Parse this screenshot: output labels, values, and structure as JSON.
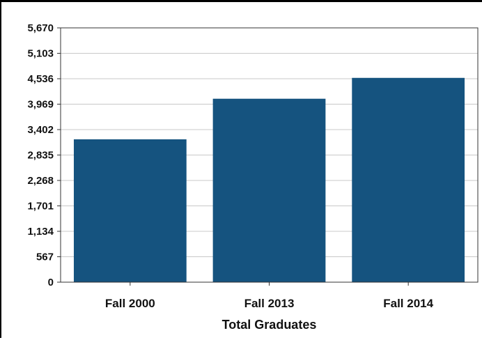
{
  "chart_data": {
    "type": "bar",
    "title": "",
    "xlabel": "Total Graduates",
    "ylabel": "",
    "categories": [
      "Fall 2000",
      "Fall 2013",
      "Fall 2014"
    ],
    "values": [
      3185,
      4090,
      4555
    ],
    "ylim": [
      0,
      5670
    ],
    "yticks": [
      "0",
      "567",
      "1,134",
      "1,701",
      "2,268",
      "2,835",
      "3,402",
      "3,969",
      "4,536",
      "5,103",
      "5,670"
    ],
    "grid": true,
    "legend": "none"
  },
  "colors": {
    "bar": "#15537f",
    "grid": "#c8c8c8",
    "axis": "#333333"
  }
}
